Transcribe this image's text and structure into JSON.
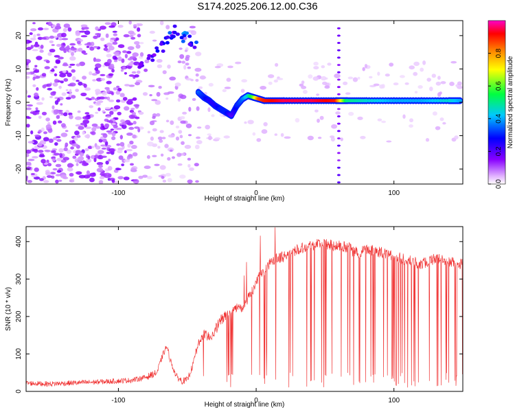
{
  "title": "S174.2025.206.12.00.C36",
  "colors": {
    "line": "#f03434",
    "axis": "#000000",
    "background": "#ffffff"
  },
  "chart_data": [
    {
      "type": "heatmap",
      "title": "S174.2025.206.12.00.C36",
      "xlabel": "Height of straight line (km)",
      "ylabel": "Frequency (Hz)",
      "colorbar_label": "Normalized spectral amplitude",
      "xlim": [
        -167,
        150
      ],
      "ylim": [
        -24.5,
        24.5
      ],
      "xticks": [
        -100,
        0,
        100
      ],
      "xtick_labels": [
        "-100",
        "0",
        "100"
      ],
      "yticks": [
        -20,
        -10,
        0,
        10,
        20
      ],
      "ytick_labels": [
        "-20",
        "-10",
        "0",
        "10",
        "20"
      ],
      "colorbar_ticks": [
        0.0,
        0.2,
        0.4,
        0.6,
        0.8
      ],
      "colorbar_tick_labels": [
        "0.0",
        "0.2",
        "0.4",
        "0.6",
        "0.8"
      ],
      "colorbar_range": [
        0,
        1
      ],
      "colormap": "rainbow (white-violet-blue-cyan-green-yellow-red-magenta)",
      "grid": false,
      "ridge": {
        "x": [
          -42,
          -38,
          -34,
          -30,
          -26,
          -22,
          -18,
          -14,
          -10,
          -6,
          -2,
          2,
          6,
          20,
          40,
          58,
          66,
          80,
          100,
          120,
          140,
          148
        ],
        "y": [
          3,
          1.5,
          0.5,
          -1,
          -2,
          -3,
          -4,
          -1,
          1,
          2,
          1.5,
          1,
          0.5,
          0.5,
          0.5,
          0.5,
          0.5,
          0.5,
          0.5,
          0.5,
          0.5,
          0.5
        ],
        "amplitude": [
          0.35,
          0.3,
          0.25,
          0.25,
          0.3,
          0.3,
          0.2,
          0.3,
          0.35,
          0.45,
          0.6,
          0.85,
          0.9,
          0.95,
          0.95,
          0.9,
          0.5,
          0.45,
          0.4,
          0.4,
          0.45,
          0.4
        ]
      },
      "upper_patch": {
        "x": [
          -82,
          -76,
          -70,
          -64,
          -58,
          -52,
          -46
        ],
        "y": [
          11,
          14,
          16,
          19,
          21,
          19,
          18
        ],
        "amplitude": [
          0.2,
          0.25,
          0.3,
          0.35,
          0.3,
          0.4,
          0.35
        ]
      }
    },
    {
      "type": "line",
      "xlabel": "Height of straight line (km)",
      "ylabel": "SNR (10 * v/v)",
      "xlim": [
        -167,
        150
      ],
      "ylim": [
        0,
        440
      ],
      "xticks": [
        -100,
        0,
        100
      ],
      "xtick_labels": [
        "-100",
        "0",
        "100"
      ],
      "yticks": [
        0,
        100,
        200,
        300,
        400
      ],
      "ytick_labels": [
        "0",
        "100",
        "200",
        "300",
        "400"
      ],
      "grid": false,
      "series": [
        {
          "x": [
            -167,
            -150,
            -130,
            -110,
            -90,
            -80,
            -72,
            -68,
            -65,
            -62,
            -58,
            -54,
            -50,
            -46,
            -42,
            -38,
            -34,
            -30,
            -26,
            -22,
            -18,
            -14,
            -10,
            -6,
            -2,
            0,
            5,
            10,
            15,
            20,
            25,
            30,
            35,
            40,
            45,
            50,
            55,
            60,
            65,
            68,
            70,
            75,
            80,
            90,
            100,
            110,
            120,
            130,
            140,
            150
          ],
          "y": [
            22,
            20,
            23,
            26,
            30,
            38,
            50,
            95,
            120,
            80,
            40,
            28,
            30,
            70,
            130,
            150,
            145,
            160,
            190,
            200,
            205,
            230,
            215,
            250,
            275,
            290,
            320,
            340,
            355,
            360,
            370,
            380,
            385,
            390,
            395,
            392,
            390,
            388,
            385,
            383,
            375,
            370,
            380,
            372,
            360,
            350,
            340,
            355,
            345,
            340
          ],
          "spikes_down_from_x": -44,
          "spikes_down_to": 10
        }
      ]
    }
  ]
}
